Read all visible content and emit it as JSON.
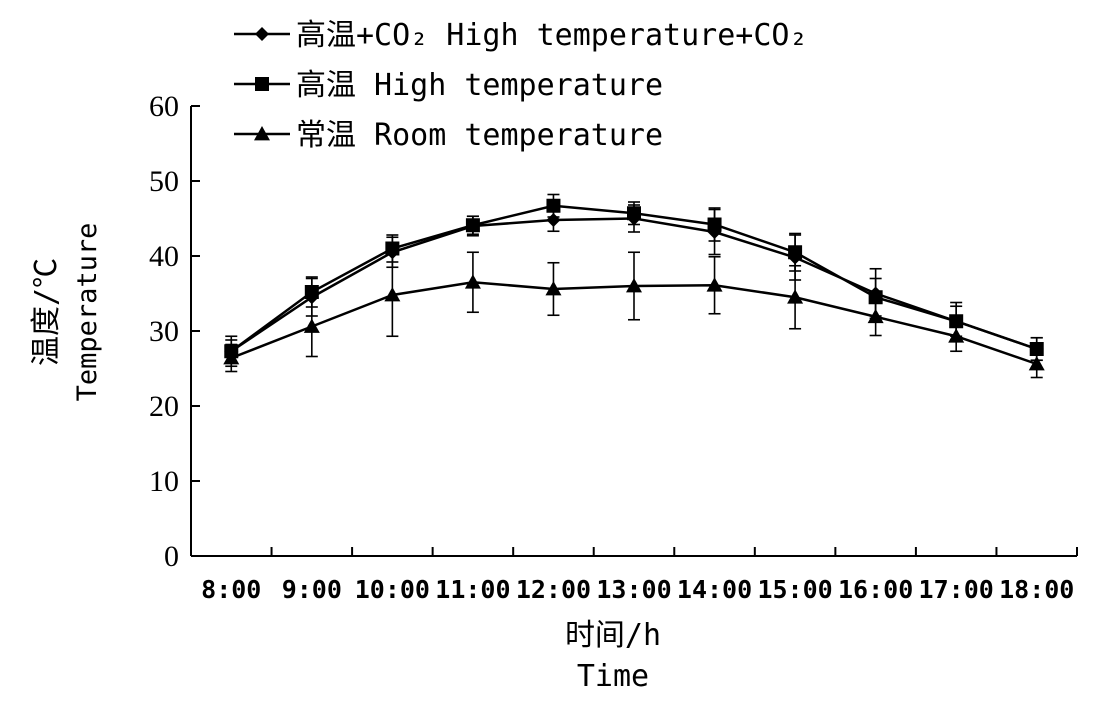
{
  "chart_data": {
    "type": "line",
    "ylabel_cn": "温度/℃",
    "ylabel_en": "Temperature",
    "xlabel_cn": "时间/h",
    "xlabel_en": "Time",
    "ylim": [
      0,
      60
    ],
    "yticks": [
      0,
      10,
      20,
      30,
      40,
      50,
      60
    ],
    "categories": [
      "8:00",
      "9:00",
      "10:00",
      "11:00",
      "12:00",
      "13:00",
      "14:00",
      "15:00",
      "16:00",
      "17:00",
      "18:00"
    ],
    "legend_position": "top-left",
    "series": [
      {
        "name": "高温+CO₂ High temperature+CO₂",
        "marker": "diamond",
        "values": [
          27.3,
          34.5,
          40.5,
          44.0,
          44.8,
          45.0,
          43.2,
          39.8,
          35.0,
          31.3,
          27.6
        ],
        "errors": [
          1.5,
          2.5,
          2.0,
          1.3,
          1.5,
          1.8,
          3.0,
          3.0,
          3.3,
          2.5,
          1.5
        ]
      },
      {
        "name": "高温 High temperature",
        "marker": "square",
        "values": [
          27.3,
          35.2,
          41.0,
          44.1,
          46.7,
          45.7,
          44.2,
          40.5,
          34.5,
          31.3,
          27.6
        ],
        "errors": [
          2.0,
          2.0,
          1.8,
          1.2,
          1.5,
          1.5,
          2.2,
          2.5,
          2.5,
          2.0,
          1.5
        ]
      },
      {
        "name": "常温 Room temperature",
        "marker": "triangle",
        "values": [
          26.4,
          30.6,
          34.8,
          36.5,
          35.6,
          36.0,
          36.1,
          34.5,
          31.9,
          29.3,
          25.6
        ],
        "errors": [
          1.8,
          4.0,
          5.5,
          4.0,
          3.5,
          4.5,
          3.8,
          4.2,
          2.5,
          2.0,
          1.8
        ]
      }
    ]
  }
}
